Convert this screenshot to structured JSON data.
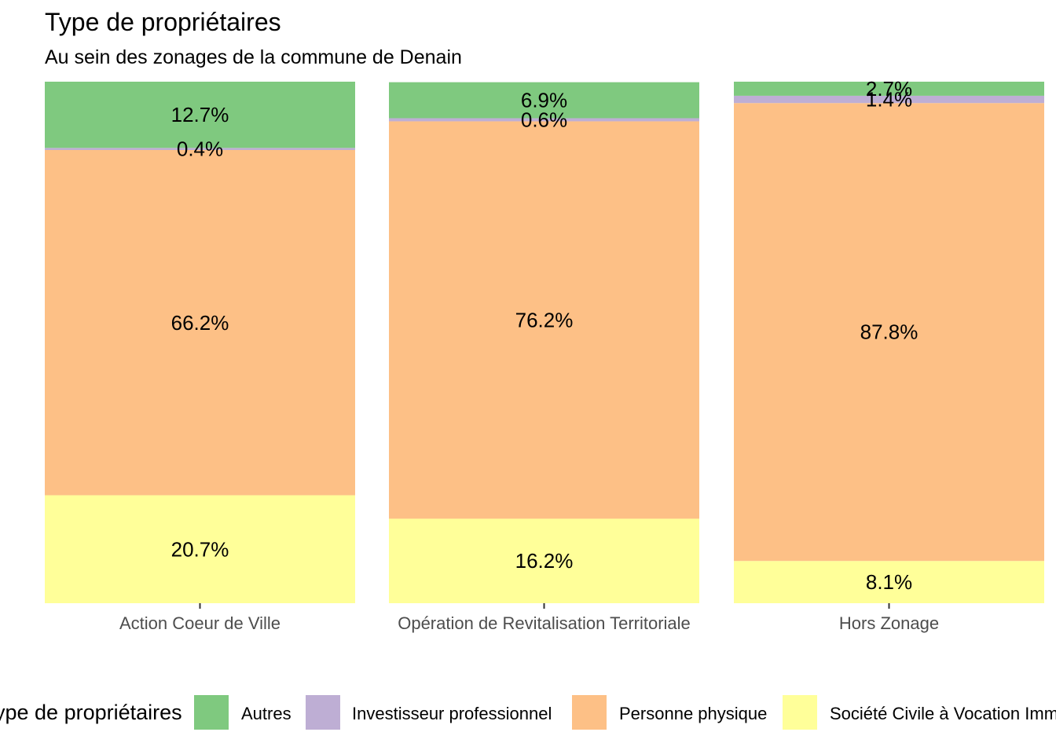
{
  "chart_data": {
    "type": "bar",
    "stacked": "percent",
    "title": "Type de propriétaires",
    "subtitle": "Au sein des zonages de la commune de Denain",
    "xlabel": "",
    "ylabel": "",
    "categories": [
      "Action Coeur de Ville",
      "Opération de Revitalisation Territoriale",
      "Hors Zonage"
    ],
    "series": [
      {
        "name": "Société Civile à Vocation Immobilière",
        "color": "#FFFF99",
        "values": [
          20.7,
          16.2,
          8.1
        ],
        "labels": [
          "20.7%",
          "16.2%",
          "8.1%"
        ]
      },
      {
        "name": "Personne physique",
        "color": "#FDC086",
        "values": [
          66.2,
          76.2,
          87.8
        ],
        "labels": [
          "66.2%",
          "76.2%",
          "87.8%"
        ]
      },
      {
        "name": "Investisseur professionnel",
        "color": "#BEAED4",
        "values": [
          0.4,
          0.6,
          1.4
        ],
        "labels": [
          "0.4%",
          "0.6%",
          "1.4%"
        ]
      },
      {
        "name": "Autres",
        "color": "#7FC97F",
        "values": [
          12.7,
          6.9,
          2.7
        ],
        "labels": [
          "12.7%",
          "6.9%",
          "2.7%"
        ]
      }
    ],
    "legend": {
      "title": "Type de propriétaires",
      "position": "bottom",
      "entries": [
        "Autres",
        "Investisseur professionnel",
        "Personne physique",
        "Société Civile à Vocation Immobilière"
      ],
      "colors": [
        "#7FC97F",
        "#BEAED4",
        "#FDC086",
        "#FFFF99"
      ]
    },
    "grid": false
  }
}
